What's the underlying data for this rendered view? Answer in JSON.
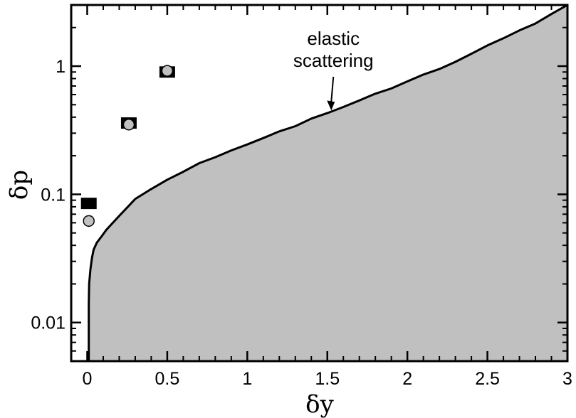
{
  "chart_data": {
    "type": "scatter",
    "title": "",
    "xlabel": "δy",
    "ylabel": "δp",
    "xlim": [
      -0.1,
      3.0
    ],
    "ylim": [
      0.005,
      3.0
    ],
    "yscale": "log",
    "grid": false,
    "xticks": [
      {
        "value": 0,
        "label": "0"
      },
      {
        "value": 0.5,
        "label": "0.5"
      },
      {
        "value": 1,
        "label": "1"
      },
      {
        "value": 1.5,
        "label": "1.5"
      },
      {
        "value": 2,
        "label": "2"
      },
      {
        "value": 2.5,
        "label": "2.5"
      },
      {
        "value": 3,
        "label": "3"
      }
    ],
    "yticks": [
      {
        "value": 0.01,
        "label": "0.01"
      },
      {
        "value": 0.1,
        "label": "0.1"
      },
      {
        "value": 1,
        "label": "1"
      }
    ],
    "region_boundary": {
      "fill_color": "#c0c0c0",
      "x": [
        0.01,
        0.01,
        0.012,
        0.02,
        0.03,
        0.04,
        0.06,
        0.09,
        0.12,
        0.16,
        0.2,
        0.25,
        0.3,
        0.4,
        0.5,
        0.6,
        0.7,
        0.8,
        0.9,
        1.0,
        1.1,
        1.2,
        1.3,
        1.4,
        1.5,
        1.6,
        1.7,
        1.8,
        1.9,
        2.0,
        2.1,
        2.2,
        2.3,
        2.4,
        2.5,
        2.6,
        2.7,
        2.8,
        2.9,
        3.0
      ],
      "y": [
        0.005,
        0.014,
        0.02,
        0.026,
        0.032,
        0.037,
        0.042,
        0.047,
        0.053,
        0.06,
        0.068,
        0.079,
        0.092,
        0.11,
        0.13,
        0.15,
        0.175,
        0.195,
        0.22,
        0.245,
        0.275,
        0.31,
        0.34,
        0.39,
        0.43,
        0.48,
        0.54,
        0.61,
        0.67,
        0.76,
        0.86,
        0.95,
        1.08,
        1.25,
        1.45,
        1.65,
        1.9,
        2.15,
        2.55,
        3.0
      ]
    },
    "series": [
      {
        "marker": "square",
        "color": "#000000",
        "points": [
          {
            "x": 0.01,
            "y": 0.085
          },
          {
            "x": 0.26,
            "y": 0.36
          },
          {
            "x": 0.5,
            "y": 0.9
          }
        ]
      },
      {
        "marker": "circle",
        "color": "#c0c0c0",
        "points": [
          {
            "x": 0.01,
            "y": 0.062
          },
          {
            "x": 0.26,
            "y": 0.35
          },
          {
            "x": 0.5,
            "y": 0.92
          }
        ]
      }
    ],
    "annotations": [
      {
        "lines": [
          "elastic",
          "scattering"
        ],
        "arrow_to": {
          "x": 1.52,
          "y": 0.44
        }
      }
    ]
  }
}
